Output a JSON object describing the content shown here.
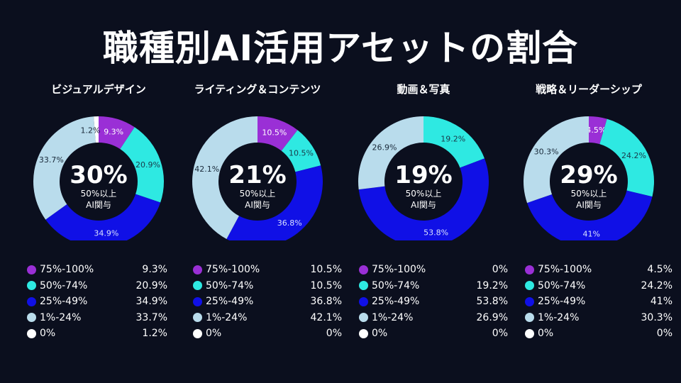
{
  "title": "職種別AI活用アセットの割合",
  "chart_data": [
    {
      "type": "pie",
      "title": "ビジュアルデザイン",
      "center_value": "30%",
      "center_label_1": "50%以上",
      "center_label_2": "AI関与",
      "categories": [
        "75%-100%",
        "50%-74%",
        "25%-49%",
        "1%-24%",
        "0%"
      ],
      "values": [
        9.3,
        20.9,
        34.9,
        33.7,
        1.2
      ],
      "labels": [
        "9.3%",
        "20.9%",
        "34.9%",
        "33.7%",
        "1.2%"
      ]
    },
    {
      "type": "pie",
      "title": "ライティング＆コンテンツ",
      "center_value": "21%",
      "center_label_1": "50%以上",
      "center_label_2": "AI関与",
      "categories": [
        "75%-100%",
        "50%-74%",
        "25%-49%",
        "1%-24%",
        "0%"
      ],
      "values": [
        10.5,
        10.5,
        36.8,
        42.1,
        0
      ],
      "labels": [
        "10.5%",
        "10.5%",
        "36.8%",
        "42.1%",
        "0%"
      ]
    },
    {
      "type": "pie",
      "title": "動画＆写真",
      "center_value": "19%",
      "center_label_1": "50%以上",
      "center_label_2": "AI関与",
      "categories": [
        "75%-100%",
        "50%-74%",
        "25%-49%",
        "1%-24%",
        "0%"
      ],
      "values": [
        0,
        19.2,
        53.8,
        26.9,
        0
      ],
      "labels": [
        "0%",
        "19.2%",
        "53.8%",
        "26.9%",
        "0%"
      ]
    },
    {
      "type": "pie",
      "title": "戦略＆リーダーシップ",
      "center_value": "29%",
      "center_label_1": "50%以上",
      "center_label_2": "AI関与",
      "categories": [
        "75%-100%",
        "50%-74%",
        "25%-49%",
        "1%-24%",
        "0%"
      ],
      "values": [
        4.5,
        24.2,
        41,
        30.3,
        0
      ],
      "labels": [
        "4.5%",
        "24.2%",
        "41%",
        "30.3%",
        "0%"
      ]
    }
  ],
  "colors": [
    "#9a2fd6",
    "#2ee9e2",
    "#1010e6",
    "#b9dcec",
    "#ffffff"
  ],
  "label_text_colors": [
    "#ffffff",
    "#1a3a4a",
    "#d8e0ff",
    "#1a2a3a",
    "#1a2a3a"
  ]
}
